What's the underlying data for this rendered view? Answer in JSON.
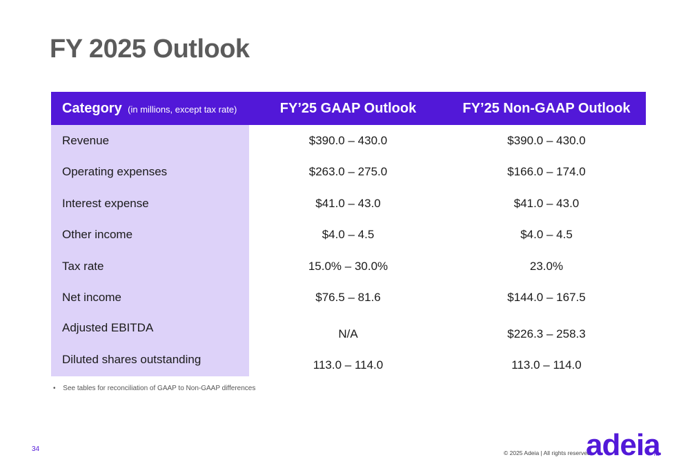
{
  "page": {
    "title": "FY 2025 Outlook",
    "page_number": "34",
    "copyright": "© 2025 Adeia | All rights reserved.",
    "logo_text": "adeia",
    "logo_tm": "TM"
  },
  "table": {
    "header": {
      "category": "Category",
      "category_note": "(in millions, except tax rate)",
      "gaap": "FY’25 GAAP Outlook",
      "nongaap": "FY’25 Non-GAAP Outlook"
    },
    "rows": [
      {
        "category": "Revenue",
        "gaap": "$390.0 – 430.0",
        "nongaap": "$390.0 – 430.0"
      },
      {
        "category": "Operating expenses",
        "gaap": "$263.0 – 275.0",
        "nongaap": "$166.0 – 174.0"
      },
      {
        "category": "Interest expense",
        "gaap": "$41.0 – 43.0",
        "nongaap": "$41.0 – 43.0"
      },
      {
        "category": "Other income",
        "gaap": "$4.0 – 4.5",
        "nongaap": "$4.0 – 4.5"
      },
      {
        "category": "Tax rate",
        "gaap": "15.0% – 30.0%",
        "nongaap": "23.0%"
      },
      {
        "category": "Net income",
        "gaap": "$76.5 – 81.6",
        "nongaap": "$144.0 – 167.5"
      },
      {
        "category": "Adjusted EBITDA",
        "gaap": "N/A",
        "nongaap": "$226.3 – 258.3"
      },
      {
        "category": "Diluted shares outstanding",
        "gaap": "113.0 – 114.0",
        "nongaap": "113.0 – 114.0"
      }
    ]
  },
  "footnote": {
    "bullet": "•",
    "text": "See tables for reconciliation of GAAP to Non-GAAP differences"
  },
  "colors": {
    "brand_purple": "#5218d8",
    "category_column_bg": "#ddd2f9",
    "title_gray": "#5b5b5b"
  }
}
